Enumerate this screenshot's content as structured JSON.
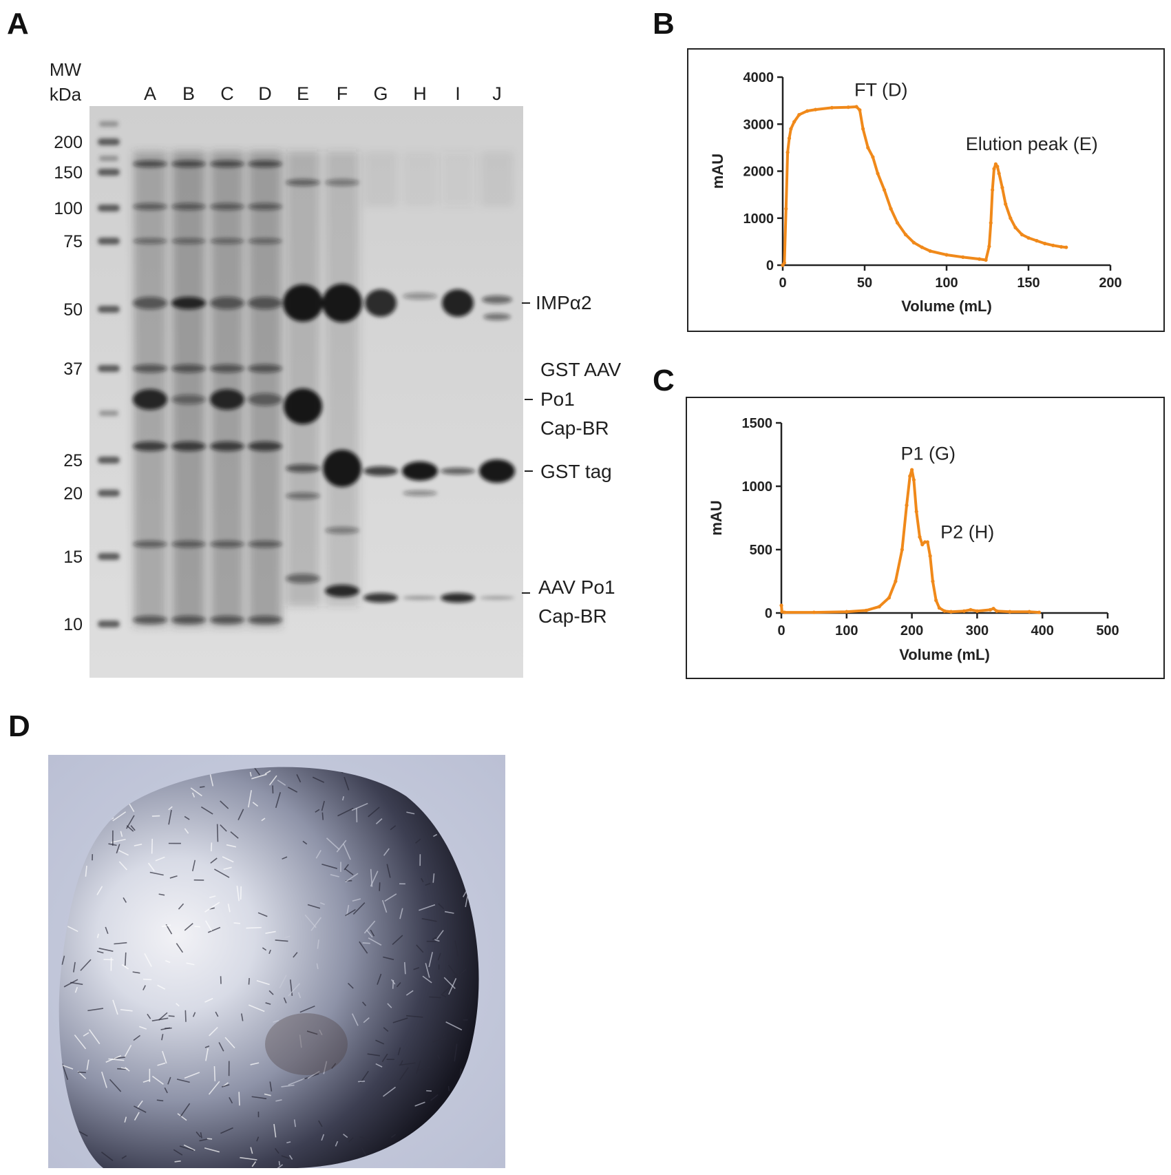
{
  "panels": {
    "a": "A",
    "b": "B",
    "c": "C",
    "d": "D"
  },
  "gel": {
    "mw_title_line1": "MW",
    "mw_title_line2": "kDa",
    "lanes": [
      "A",
      "B",
      "C",
      "D",
      "E",
      "F",
      "G",
      "H",
      "I",
      "J"
    ],
    "markers_kda": [
      "200",
      "150",
      "100",
      "75",
      "50",
      "37",
      "25",
      "20",
      "15",
      "10"
    ],
    "band_labels": {
      "impa2": "IMPα2",
      "gst_aav_line1": "GST AAV",
      "gst_aav_line2": "Po1",
      "gst_aav_line3": "Cap-BR",
      "gst_tag": "GST tag",
      "aav_line1": "AAV Po1",
      "aav_line2": "Cap-BR"
    }
  },
  "chart_data": [
    {
      "id": "B",
      "type": "line",
      "xlabel": "Volume (mL)",
      "ylabel": "mAU",
      "xlim": [
        0,
        200
      ],
      "ylim": [
        0,
        4000
      ],
      "xticks": [
        0,
        50,
        100,
        150,
        200
      ],
      "yticks": [
        0,
        1000,
        2000,
        3000,
        4000
      ],
      "series": [
        {
          "name": "absorbance",
          "color": "#f0891a",
          "x": [
            0,
            1,
            2,
            3,
            4,
            5,
            7,
            10,
            15,
            20,
            30,
            40,
            45,
            47,
            49,
            52,
            55,
            58,
            62,
            66,
            70,
            75,
            80,
            85,
            90,
            100,
            110,
            120,
            124,
            126,
            127,
            128,
            129,
            130,
            131,
            132,
            134,
            136,
            139,
            142,
            146,
            150,
            155,
            160,
            165,
            170,
            173
          ],
          "y": [
            0,
            50,
            1200,
            2400,
            2700,
            2900,
            3050,
            3200,
            3280,
            3310,
            3350,
            3360,
            3370,
            3300,
            2900,
            2500,
            2300,
            1950,
            1600,
            1200,
            900,
            650,
            480,
            380,
            300,
            220,
            170,
            130,
            110,
            400,
            900,
            1600,
            2050,
            2150,
            2100,
            1950,
            1650,
            1300,
            1000,
            800,
            650,
            580,
            520,
            460,
            420,
            390,
            380
          ]
        }
      ],
      "annotations": [
        {
          "text": "FT (D)",
          "x": 60,
          "y": 3600
        },
        {
          "text": "Elution peak (E)",
          "x": 152,
          "y": 2450
        }
      ]
    },
    {
      "id": "C",
      "type": "line",
      "xlabel": "Volume (mL)",
      "ylabel": "mAU",
      "xlim": [
        0,
        500
      ],
      "ylim": [
        0,
        1500
      ],
      "xticks": [
        0,
        100,
        200,
        300,
        400,
        500
      ],
      "yticks": [
        0,
        500,
        1000,
        1500
      ],
      "series": [
        {
          "name": "absorbance",
          "color": "#f0891a",
          "x": [
            0,
            1,
            5,
            50,
            100,
            130,
            150,
            165,
            175,
            185,
            192,
            197,
            200,
            203,
            207,
            212,
            216,
            220,
            224,
            228,
            232,
            237,
            242,
            250,
            260,
            280,
            290,
            300,
            320,
            325,
            330,
            350,
            380,
            395
          ],
          "y": [
            60,
            10,
            5,
            5,
            10,
            20,
            50,
            120,
            250,
            500,
            850,
            1080,
            1130,
            1050,
            800,
            600,
            540,
            560,
            560,
            450,
            250,
            100,
            40,
            15,
            10,
            15,
            25,
            15,
            25,
            35,
            15,
            10,
            10,
            5
          ]
        }
      ],
      "annotations": [
        {
          "text": "P1 (G)",
          "x": 225,
          "y": 1210
        },
        {
          "text": "P2 (H)",
          "x": 285,
          "y": 590
        }
      ]
    }
  ]
}
